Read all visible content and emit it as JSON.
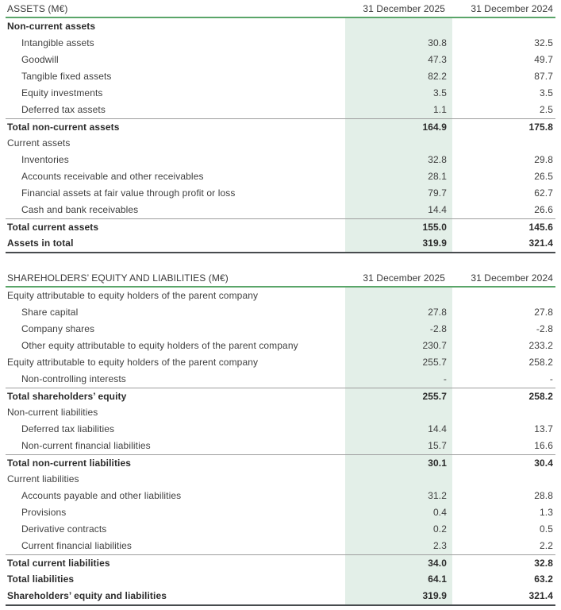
{
  "colors": {
    "accent_green_rule": "#5aa569",
    "highlight_band": "#e3efe8",
    "thin_row_line": "#9e9e9e",
    "thick_bottom_line": "#474b4e",
    "text": "#3f3f3f"
  },
  "tables": [
    {
      "title": "ASSETS (M€)",
      "col1": "31 December 2025",
      "col2": "31 December 2024",
      "rows": [
        {
          "label": "Non-current assets",
          "v1": "",
          "v2": "",
          "style": "section-bold"
        },
        {
          "label": "Intangible assets",
          "v1": "30.8",
          "v2": "32.5",
          "style": "item"
        },
        {
          "label": "Goodwill",
          "v1": "47.3",
          "v2": "49.7",
          "style": "item"
        },
        {
          "label": "Tangible fixed assets",
          "v1": "82.2",
          "v2": "87.7",
          "style": "item"
        },
        {
          "label": "Equity investments",
          "v1": "3.5",
          "v2": "3.5",
          "style": "item"
        },
        {
          "label": "Deferred tax assets",
          "v1": "1.1",
          "v2": "2.5",
          "style": "item"
        },
        {
          "label": "Total non-current assets",
          "v1": "164.9",
          "v2": "175.8",
          "style": "total"
        },
        {
          "label": "Current assets",
          "v1": "",
          "v2": "",
          "style": "section"
        },
        {
          "label": "Inventories",
          "v1": "32.8",
          "v2": "29.8",
          "style": "item"
        },
        {
          "label": "Accounts receivable and other receivables",
          "v1": "28.1",
          "v2": "26.5",
          "style": "item"
        },
        {
          "label": "Financial assets at fair value through profit or loss",
          "v1": "79.7",
          "v2": "62.7",
          "style": "item"
        },
        {
          "label": "Cash and bank receivables",
          "v1": "14.4",
          "v2": "26.6",
          "style": "item"
        },
        {
          "label": "Total current assets",
          "v1": "155.0",
          "v2": "145.6",
          "style": "total"
        },
        {
          "label": "Assets in total",
          "v1": "319.9",
          "v2": "321.4",
          "style": "grand"
        }
      ]
    },
    {
      "title": "SHAREHOLDERS’ EQUITY AND LIABILITIES (M€)",
      "col1": "31 December 2025",
      "col2": "31 December 2024",
      "rows": [
        {
          "label": "Equity attributable to equity holders of the parent company",
          "v1": "",
          "v2": "",
          "style": "section"
        },
        {
          "label": "Share capital",
          "v1": "27.8",
          "v2": "27.8",
          "style": "item"
        },
        {
          "label": "Company shares",
          "v1": "-2.8",
          "v2": "-2.8",
          "style": "item"
        },
        {
          "label": "Other equity attributable to equity holders of the parent company",
          "v1": "230.7",
          "v2": "233.2",
          "style": "item"
        },
        {
          "label": "Equity attributable to equity holders of the parent company",
          "v1": "255.7",
          "v2": "258.2",
          "style": "flat"
        },
        {
          "label": "Non-controlling interests",
          "v1": "-",
          "v2": "-",
          "style": "item"
        },
        {
          "label": "Total shareholders’ equity",
          "v1": "255.7",
          "v2": "258.2",
          "style": "total"
        },
        {
          "label": "Non-current liabilities",
          "v1": "",
          "v2": "",
          "style": "section"
        },
        {
          "label": "Deferred tax liabilities",
          "v1": "14.4",
          "v2": "13.7",
          "style": "item"
        },
        {
          "label": "Non-current financial liabilities",
          "v1": "15.7",
          "v2": "16.6",
          "style": "item"
        },
        {
          "label": "Total non-current liabilities",
          "v1": "30.1",
          "v2": "30.4",
          "style": "total"
        },
        {
          "label": "Current liabilities",
          "v1": "",
          "v2": "",
          "style": "section"
        },
        {
          "label": "Accounts payable and other liabilities",
          "v1": "31.2",
          "v2": "28.8",
          "style": "item"
        },
        {
          "label": "Provisions",
          "v1": "0.4",
          "v2": "1.3",
          "style": "item"
        },
        {
          "label": "Derivative contracts",
          "v1": "0.2",
          "v2": "0.5",
          "style": "item"
        },
        {
          "label": "Current financial liabilities",
          "v1": "2.3",
          "v2": "2.2",
          "style": "item"
        },
        {
          "label": "Total current liabilities",
          "v1": "34.0",
          "v2": "32.8",
          "style": "total"
        },
        {
          "label": "Total liabilities",
          "v1": "64.1",
          "v2": "63.2",
          "style": "grand"
        },
        {
          "label": "Shareholders’ equity and liabilities",
          "v1": "319.9",
          "v2": "321.4",
          "style": "grand"
        }
      ]
    }
  ]
}
